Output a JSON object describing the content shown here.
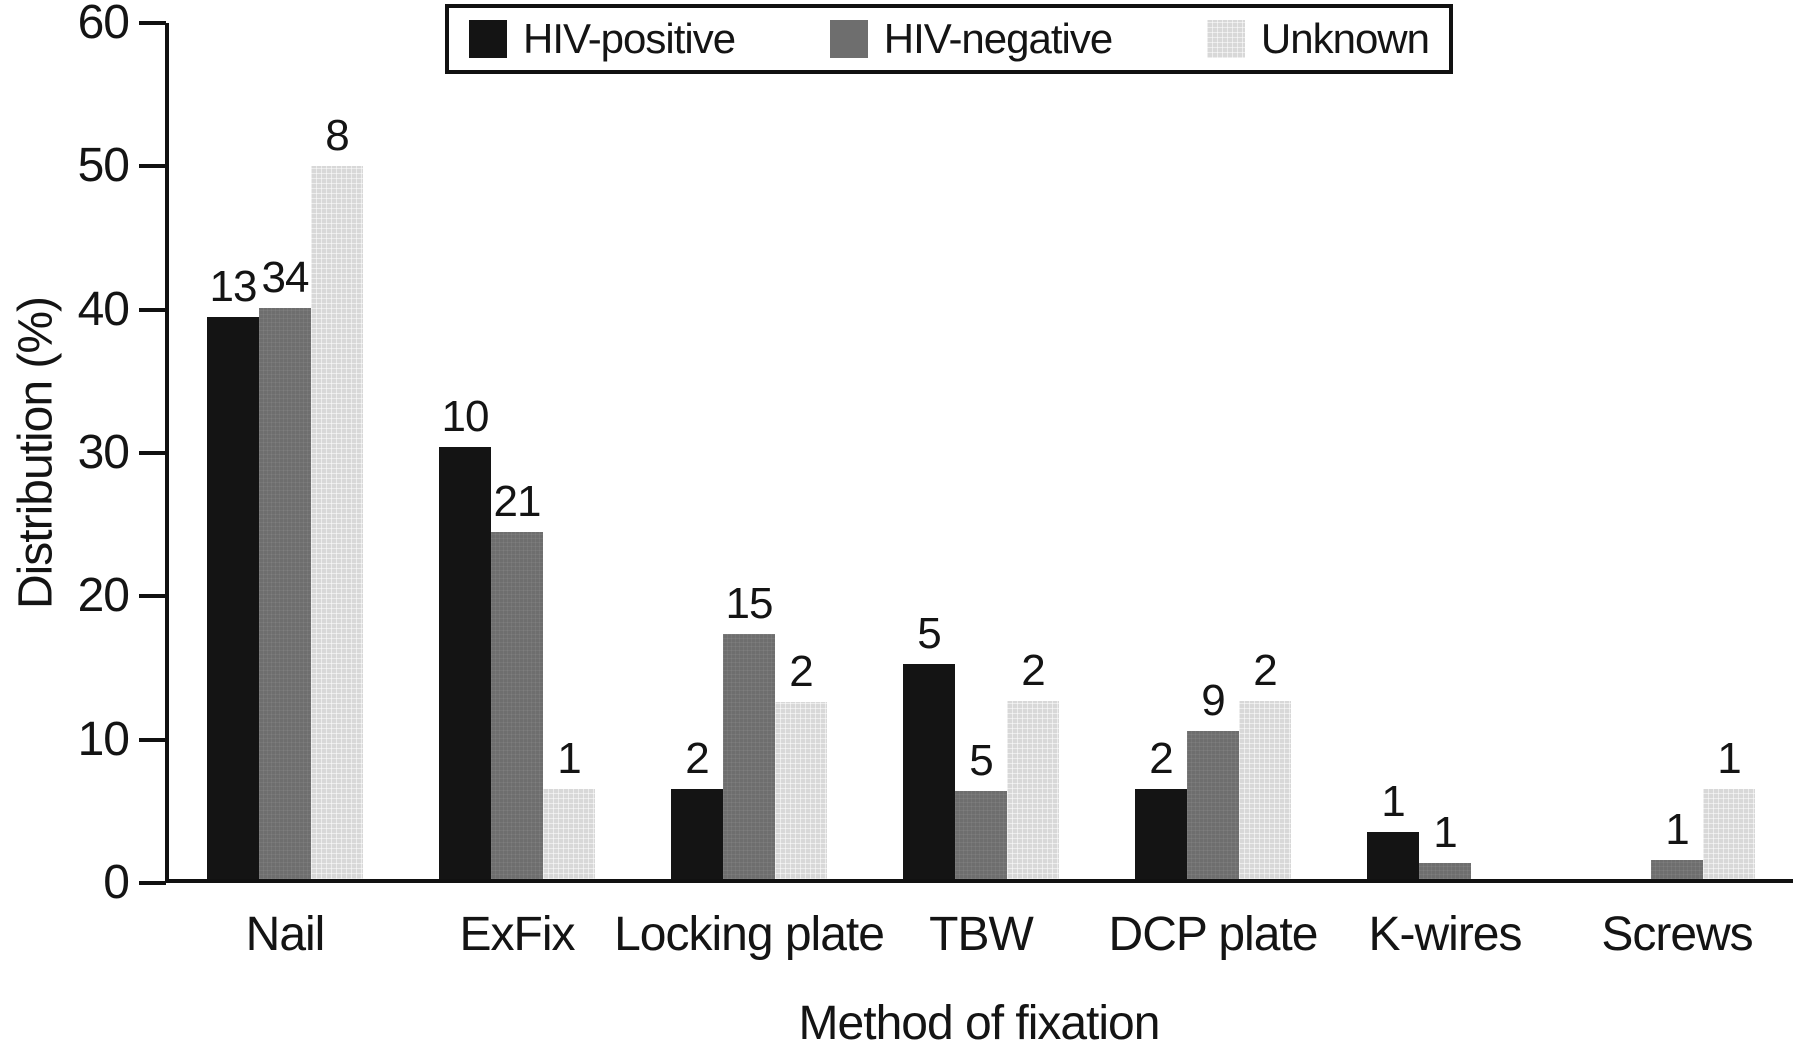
{
  "chart_data": {
    "type": "bar",
    "title": "",
    "xlabel": "Method of fixation",
    "ylabel": "Distribution (%)",
    "ylim": [
      0,
      60
    ],
    "yticks": [
      0,
      10,
      20,
      30,
      40,
      50,
      60
    ],
    "grid": false,
    "legend_position": "top",
    "categories": [
      "Nail",
      "ExFix",
      "Locking plate",
      "TBW",
      "DCP plate",
      "K-wires",
      "Screws"
    ],
    "series": [
      {
        "name": "HIV-positive",
        "color": "#141414",
        "values_pct": [
          39.4,
          30.3,
          6.3,
          15.1,
          6.3,
          3.3,
          0
        ],
        "bar_labels": [
          "13",
          "10",
          "2",
          "5",
          "2",
          "1",
          ""
        ]
      },
      {
        "name": "HIV-negative",
        "color": "#6e6e6e",
        "values_pct": [
          40.0,
          24.3,
          17.2,
          6.2,
          10.4,
          1.1,
          1.3
        ],
        "bar_labels": [
          "34",
          "21",
          "15",
          "5",
          "9",
          "1",
          "1"
        ]
      },
      {
        "name": "Unknown",
        "color": "#d8d8d8",
        "values_pct": [
          50.0,
          6.3,
          12.4,
          12.5,
          12.5,
          0,
          6.3
        ],
        "bar_labels": [
          "8",
          "1",
          "2",
          "2",
          "2",
          "",
          "1"
        ]
      }
    ]
  }
}
